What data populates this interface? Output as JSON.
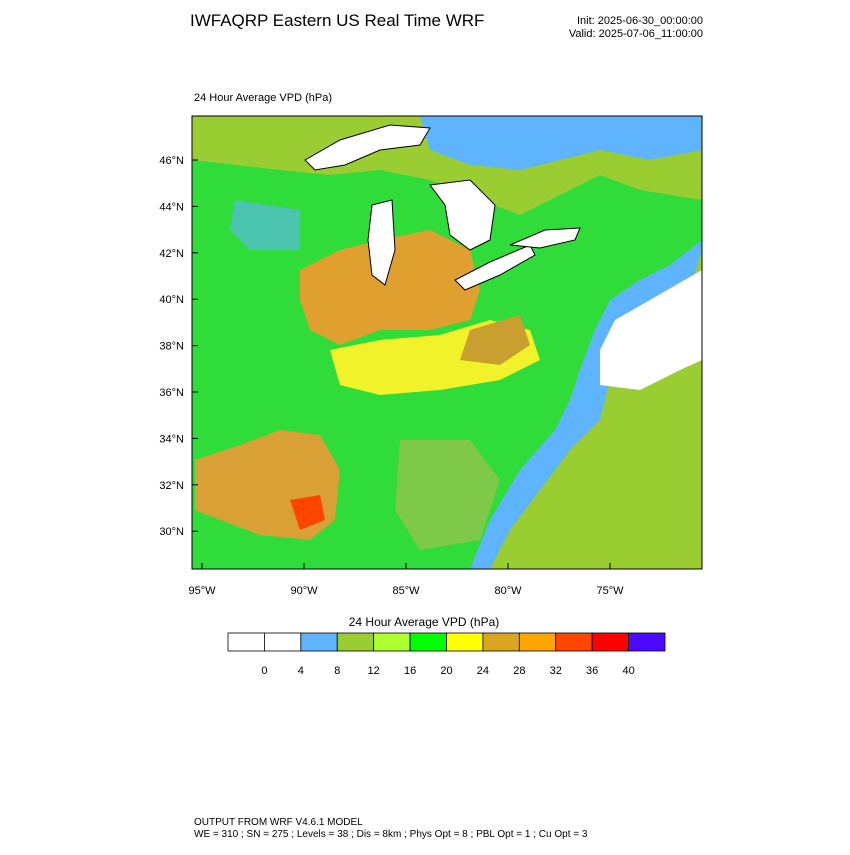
{
  "header": {
    "title": "IWFAQRP Eastern US Real Time WRF",
    "init": "Init: 2025-06-30_00:00:00",
    "valid": "Valid: 2025-07-06_11:00:00"
  },
  "map": {
    "title": "24 Hour Average VPD   (hPa)",
    "lat_labels": [
      "46°N",
      "44°N",
      "42°N",
      "40°N",
      "38°N",
      "36°N",
      "34°N",
      "32°N",
      "30°N"
    ],
    "lon_labels": [
      "95°W",
      "90°W",
      "85°W",
      "80°W",
      "75°W"
    ]
  },
  "colorbar": {
    "title": "24 Hour Average VPD  (hPa)",
    "labels": [
      0,
      4,
      8,
      12,
      16,
      20,
      24,
      28,
      32,
      36,
      40
    ],
    "colors": [
      "#ffffff",
      "#ffffff",
      "#5fb4ff",
      "#9acd32",
      "#adff2f",
      "#00ff00",
      "#ffff00",
      "#daa520",
      "#ffa500",
      "#ff4500",
      "#ff0000",
      "#4b0aff"
    ]
  },
  "footer": {
    "line1": "OUTPUT FROM WRF V4.6.1 MODEL",
    "line2": "WE = 310 ; SN = 275 ; Levels = 38 ; Dis = 8km ; Phys Opt = 8 ; PBL Opt = 1 ; Cu Opt = 3"
  }
}
